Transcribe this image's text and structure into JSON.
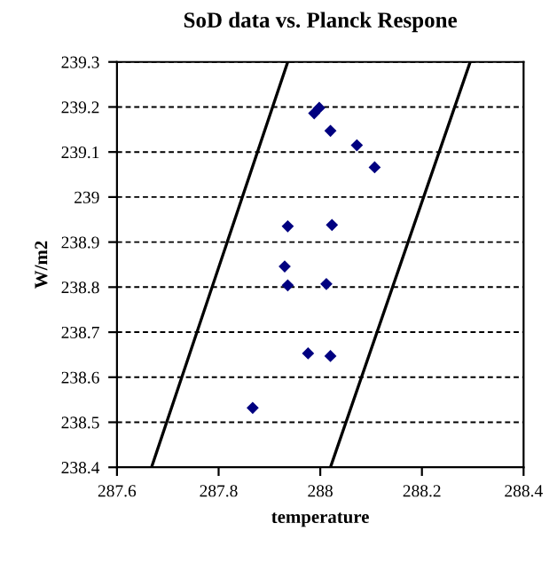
{
  "chart_data": {
    "type": "scatter",
    "title": "SoD data vs. Planck Respone",
    "xlabel": "temperature",
    "ylabel": "W/m2",
    "xlim": [
      287.6,
      288.4
    ],
    "xticks": [
      287.6,
      287.8,
      288,
      288.2,
      288.4
    ],
    "ylim": [
      238.4,
      239.3
    ],
    "yticks": [
      238.4,
      238.5,
      238.6,
      238.7,
      238.8,
      238.9,
      239,
      239.1,
      239.2,
      239.3
    ],
    "grid": "y",
    "marker": "diamond",
    "legend": false,
    "series": [
      {
        "color": "#000080",
        "x": [
          287.988,
          287.998,
          288.02,
          288.072,
          288.107,
          287.936,
          288.023,
          287.93,
          287.936,
          288.012,
          287.976,
          288.02,
          287.867
        ],
        "values": [
          239.186,
          239.198,
          239.147,
          239.115,
          239.066,
          238.935,
          238.938,
          238.846,
          238.804,
          238.807,
          238.653,
          238.647,
          238.532
        ]
      },
      {
        "type": "line",
        "color": "#000000",
        "marker": "none",
        "x": [
          287.668,
          287.936
        ],
        "values": [
          238.4,
          239.3
        ]
      },
      {
        "type": "line",
        "color": "#000000",
        "marker": "none",
        "x": [
          288.02,
          288.295
        ],
        "values": [
          238.4,
          239.3
        ]
      }
    ]
  }
}
